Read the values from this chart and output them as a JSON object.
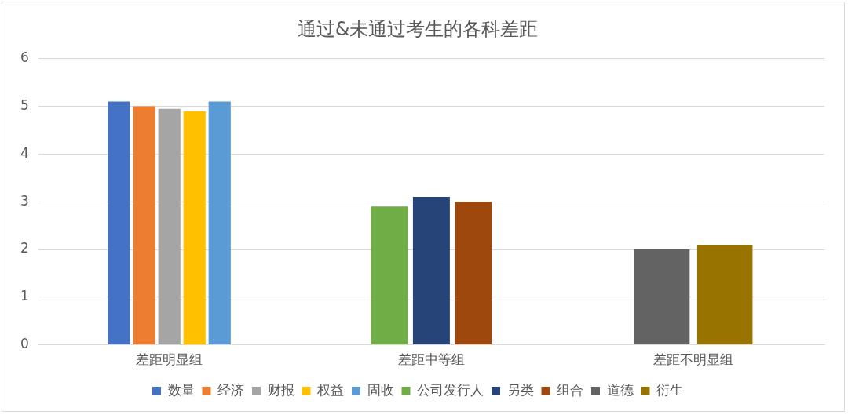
{
  "chart_data": {
    "type": "bar",
    "title": "通过&未通过考生的各科差距",
    "categories": [
      "差距明显组",
      "差距中等组",
      "差距不明显组"
    ],
    "series": [
      {
        "name": "数量",
        "color": "#4472c4",
        "values": [
          5.1,
          null,
          null
        ]
      },
      {
        "name": "经济",
        "color": "#ed7d31",
        "values": [
          5.0,
          null,
          null
        ]
      },
      {
        "name": "财报",
        "color": "#a5a5a5",
        "values": [
          4.95,
          null,
          null
        ]
      },
      {
        "name": "权益",
        "color": "#ffc000",
        "values": [
          4.9,
          null,
          null
        ]
      },
      {
        "name": "固收",
        "color": "#5b9bd5",
        "values": [
          5.1,
          null,
          null
        ]
      },
      {
        "name": "公司发行人",
        "color": "#70ad47",
        "values": [
          null,
          2.9,
          null
        ]
      },
      {
        "name": "另类",
        "color": "#264478",
        "values": [
          null,
          3.1,
          null
        ]
      },
      {
        "name": "组合",
        "color": "#9e480e",
        "values": [
          null,
          3.0,
          null
        ]
      },
      {
        "name": "道德",
        "color": "#636363",
        "values": [
          null,
          null,
          2.0
        ]
      },
      {
        "name": "衍生",
        "color": "#997300",
        "values": [
          null,
          null,
          2.1
        ]
      }
    ],
    "ylim": [
      0,
      6
    ],
    "yticks": [
      0,
      1,
      2,
      3,
      4,
      5,
      6
    ],
    "grid": "y",
    "legend": "bottom"
  }
}
